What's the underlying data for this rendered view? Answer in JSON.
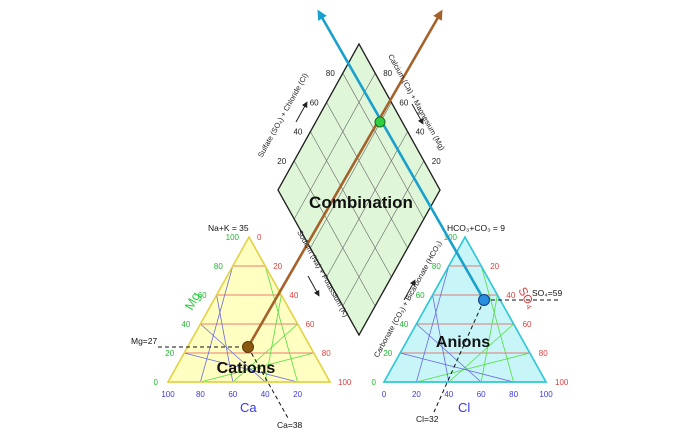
{
  "diagram": {
    "type": "piper_diagram",
    "labels": {
      "combination": "Combination",
      "cations": "Cations",
      "anions": "Anions",
      "na_k": "Na+K = 35",
      "hco3_co3": "HCO₃+CO₃ = 9",
      "mg_value": "Mg=27",
      "ca_value": "Ca=38",
      "cl_value": "Cl=32",
      "so4_value": "SO₄=59"
    },
    "axis_titles": {
      "mg": "Mg",
      "ca": "Ca",
      "cl": "Cl",
      "so4": "SO₄",
      "sulfate_chloride": "Sulfate (SO₄) + Chloride (Cl)",
      "calcium_magnesium": "Calcium (Ca) + Magnesium (Mg)",
      "sodium_potassium": "Sodium (Na) + Potassium (K)",
      "carbonate_bicarbonate": "Carbonate (CO₃) + Bicarbonate (HCO₃)"
    },
    "ticks": {
      "cations_left": [
        "0",
        "20",
        "40",
        "60",
        "80",
        "100"
      ],
      "cations_bottom": [
        "100",
        "80",
        "60",
        "40",
        "20"
      ],
      "cations_right": [
        "0",
        "20",
        "40",
        "60",
        "80",
        "100"
      ],
      "anions_left": [
        "100",
        "80",
        "60",
        "40",
        "20",
        "0"
      ],
      "anions_bottom": [
        "0",
        "20",
        "40",
        "60",
        "80",
        "100"
      ],
      "anions_right": [
        "20",
        "40",
        "60",
        "80",
        "100"
      ],
      "diamond_left": [
        "20",
        "40",
        "60",
        "80"
      ],
      "diamond_right": [
        "20",
        "40",
        "60",
        "80"
      ]
    },
    "colors": {
      "cation_fill": "#ffffc2",
      "cation_stroke": "#e5d24a",
      "anion_fill": "#c8f6f8",
      "anion_stroke": "#30c8d8",
      "diamond_fill": "#dff6d8",
      "grid_green": "#55dd44",
      "grid_red": "#e45050",
      "grid_blue": "#6a6ae0",
      "brown_line": "#a4622a",
      "cyan_line": "#1aa0cc",
      "green_point": "#2fcf42",
      "brown_point": "#8a5a10",
      "blue_point": "#2a8ee0"
    },
    "sample": {
      "mg": 27,
      "ca": 38,
      "na_k": 35,
      "cl": 32,
      "so4": 59,
      "hco3_co3": 9
    }
  }
}
